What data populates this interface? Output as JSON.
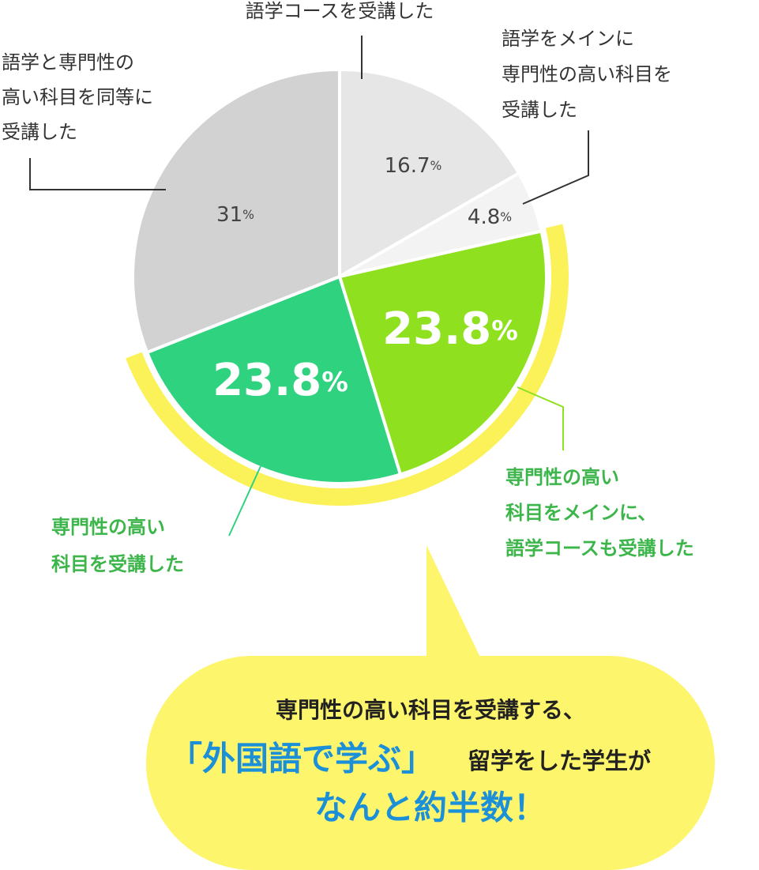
{
  "chart_data": {
    "type": "pie",
    "categories": [
      "語学コースを受講した",
      "語学をメインに\n専門性の高い科目を\n受講した",
      "専門性の高い\n科目をメインに、\n語学コースも受講した",
      "専門性の高い\n科目を受講した",
      "語学と専門性の\n高い科目を同等に\n受講した"
    ],
    "values": [
      16.7,
      4.8,
      23.8,
      23.8,
      31
    ],
    "value_labels": [
      "16.7%",
      "4.8%",
      "23.8%",
      "23.8%",
      "31%"
    ],
    "colors": [
      "#e6e6e6",
      "#f3f3f3",
      "#8fe01f",
      "#2fd27f",
      "#d2d2d2"
    ]
  },
  "callout": {
    "line1": "専門性の高い科目を受講する、",
    "emphasis": "「外国語で学ぶ」",
    "line2_rest": "留学をした学生が",
    "line3": "なんと約半数！"
  }
}
